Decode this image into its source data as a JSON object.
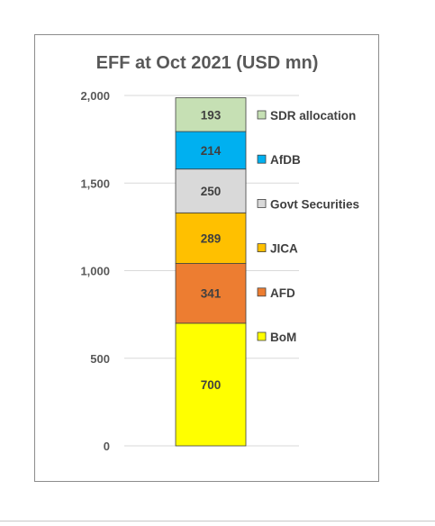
{
  "chart_data": {
    "type": "bar",
    "stacked": true,
    "title": "EFF at Oct 2021 (USD mn)",
    "xlabel": "",
    "ylabel": "",
    "ylim": [
      0,
      2000
    ],
    "yticks": [
      0,
      500,
      1000,
      1500,
      2000
    ],
    "ytick_labels": [
      "0",
      "500",
      "1,000",
      "1,500",
      "2,000"
    ],
    "grid": true,
    "legend_position": "right",
    "series": [
      {
        "name": "BoM",
        "value": 700,
        "color": "#ffff00"
      },
      {
        "name": "AFD",
        "value": 341,
        "color": "#ed7d31"
      },
      {
        "name": "JICA",
        "value": 289,
        "color": "#ffc000"
      },
      {
        "name": "Govt Securities",
        "value": 250,
        "color": "#d9d9d9"
      },
      {
        "name": "AfDB",
        "value": 214,
        "color": "#00b0f0"
      },
      {
        "name": "SDR allocation",
        "value": 193,
        "color": "#c6e0b4"
      }
    ],
    "total": 1987
  }
}
